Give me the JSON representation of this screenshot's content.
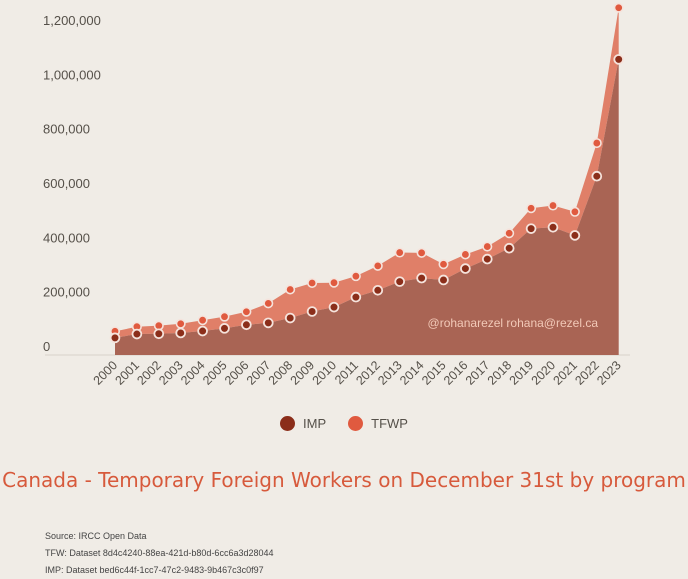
{
  "chart_data": {
    "type": "area",
    "stacked": true,
    "title": "Canada - Temporary Foreign Workers on December 31st by program",
    "categories": [
      "2000",
      "2001",
      "2002",
      "2003",
      "2004",
      "2005",
      "2006",
      "2007",
      "2008",
      "2009",
      "2010",
      "2011",
      "2012",
      "2013",
      "2014",
      "2015",
      "2016",
      "2017",
      "2018",
      "2019",
      "2020",
      "2021",
      "2022",
      "2023"
    ],
    "series": [
      {
        "name": "IMP",
        "color": "#8b2e1a",
        "fill": "#a96454",
        "values": [
          30000,
          44000,
          45000,
          48000,
          55000,
          65000,
          78000,
          85000,
          103000,
          127000,
          143000,
          180000,
          205000,
          237000,
          250000,
          243000,
          285000,
          320000,
          360000,
          432000,
          437000,
          407000,
          625000,
          1055000
        ]
      },
      {
        "name": "TFWP",
        "color": "#e05a3f",
        "fill": "#e07f68",
        "values": [
          24000,
          27000,
          30000,
          34000,
          40000,
          43000,
          48000,
          72000,
          105000,
          105000,
          90000,
          77000,
          90000,
          107000,
          93000,
          58000,
          52000,
          46000,
          55000,
          75000,
          80000,
          87000,
          122000,
          190000
        ]
      }
    ],
    "ylim": [
      0,
      1250000
    ],
    "yticks": [
      "0",
      "200,000",
      "400,000",
      "600,000",
      "800,000",
      "1,000,000",
      "1,200,000"
    ],
    "legend_position": "bottom",
    "watermark": "@rohanarezel rohana@rezel.ca"
  },
  "footnotes": [
    "Source: IRCC Open Data",
    "TFW: Dataset 8d4c4240-88ea-421d-b80d-6cc6a3d28044",
    "IMP: Dataset bed6c44f-1cc7-47c2-9483-9b467c3c0f97"
  ]
}
